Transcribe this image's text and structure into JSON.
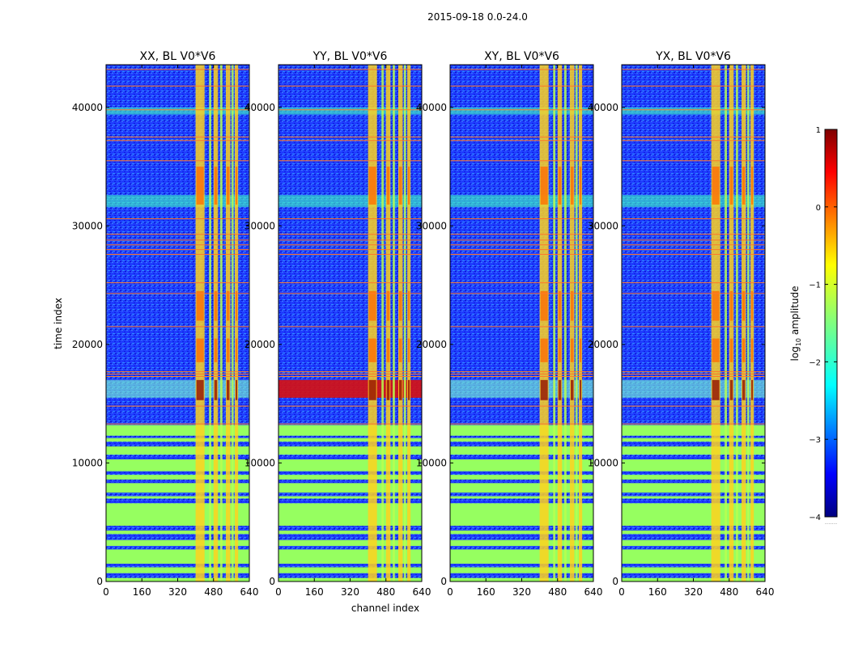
{
  "figure": {
    "suptitle": "2015-09-18 0.0-24.0",
    "xlabel": "channel index",
    "ylabel": "time index"
  },
  "chart_data": {
    "type": "heatmap",
    "colormap": "jet",
    "xlim": [
      0,
      640
    ],
    "ylim": [
      0,
      43600
    ],
    "xticks": [
      0,
      160,
      320,
      480,
      640
    ],
    "yticks": [
      0,
      10000,
      20000,
      30000,
      40000
    ],
    "panels": [
      {
        "title": "XX, BL V0*V6",
        "pol": "XX"
      },
      {
        "title": "YY, BL V0*V6",
        "pol": "YY"
      },
      {
        "title": "XY, BL V0*V6",
        "pol": "XY"
      },
      {
        "title": "YX, BL V0*V6",
        "pol": "YX"
      }
    ],
    "colorbar": {
      "label": "log10 amplitude",
      "label_base": "log",
      "label_sub": "10",
      "label_rest": " amplitude",
      "vmin": -4,
      "vmax": 1,
      "ticks": [
        1,
        0,
        -1,
        -2,
        -3,
        -4
      ],
      "tick_labels": [
        "1",
        "0",
        "−1",
        "−2",
        "−3",
        "−4"
      ],
      "below_note": "......."
    }
  }
}
